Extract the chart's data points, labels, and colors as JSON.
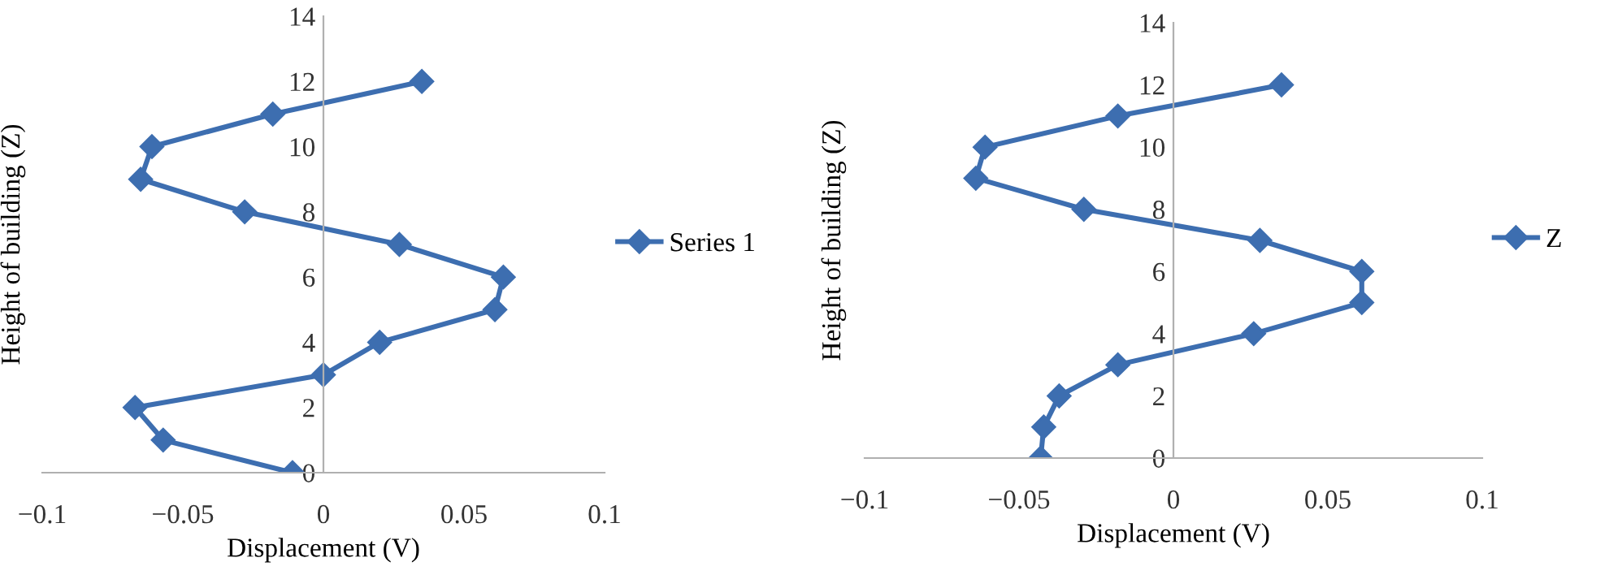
{
  "chart_data": [
    {
      "type": "line",
      "xlabel": "Displacement (V)",
      "ylabel": "Height of building (Z)",
      "xlim": [
        -0.1,
        0.1
      ],
      "xticks": [
        -0.1,
        -0.05,
        0,
        0.05,
        0.1
      ],
      "ylim": [
        0,
        14
      ],
      "yticks": [
        0,
        2,
        4,
        6,
        8,
        10,
        12,
        14
      ],
      "grid": false,
      "legend": "right",
      "marker": "diamond",
      "line_style": "solid",
      "series": [
        {
          "name": "Series 1",
          "color": "#3d6eb0",
          "x": [
            -0.011,
            -0.057,
            -0.067,
            0.0,
            0.02,
            0.061,
            0.064,
            0.027,
            -0.028,
            -0.065,
            -0.061,
            -0.018,
            0.035
          ],
          "values": [
            0,
            1,
            2,
            3,
            4,
            5,
            6,
            7,
            8,
            9,
            10,
            11,
            12
          ]
        }
      ]
    },
    {
      "type": "line",
      "xlabel": "Displacement (V)",
      "ylabel": "Height of building (Z)",
      "xlim": [
        -0.1,
        0.1
      ],
      "xticks": [
        -0.1,
        -0.05,
        0,
        0.05,
        0.1
      ],
      "ylim": [
        0,
        14
      ],
      "yticks": [
        0,
        2,
        4,
        6,
        8,
        10,
        12,
        14
      ],
      "grid": false,
      "legend": "right",
      "marker": "diamond",
      "line_style": "solid",
      "series": [
        {
          "name": "Z",
          "color": "#3d6eb0",
          "x": [
            -0.043,
            -0.042,
            -0.037,
            -0.018,
            0.026,
            0.061,
            0.061,
            0.028,
            -0.029,
            -0.064,
            -0.061,
            -0.018,
            0.035
          ],
          "values": [
            0,
            1,
            2,
            3,
            4,
            5,
            6,
            7,
            8,
            9,
            10,
            11,
            12
          ]
        }
      ]
    }
  ]
}
